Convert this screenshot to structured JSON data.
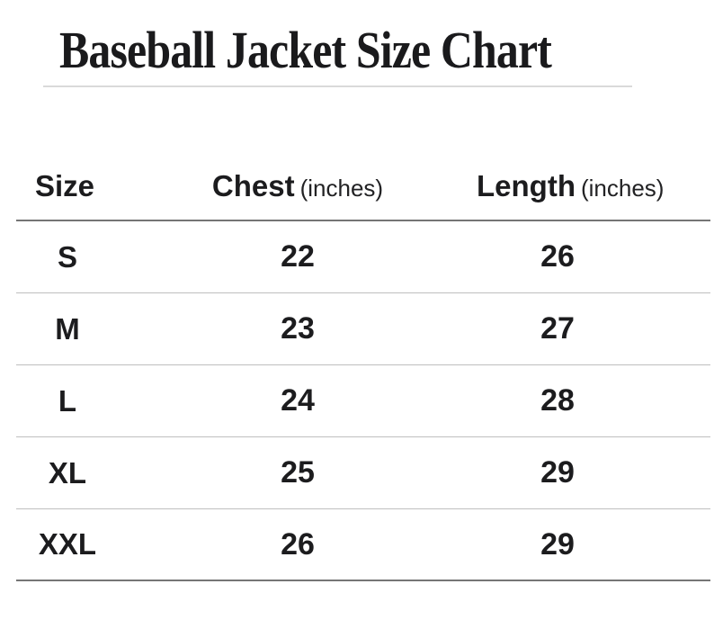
{
  "page": {
    "title": "Baseball Jacket Size Chart"
  },
  "table": {
    "headers": [
      {
        "label": "Size",
        "unit": ""
      },
      {
        "label": "Chest",
        "unit": "(inches)"
      },
      {
        "label": "Length",
        "unit": "(inches)"
      }
    ],
    "rows": [
      {
        "size": "S",
        "chest": "22",
        "length": "26"
      },
      {
        "size": "M",
        "chest": "23",
        "length": "27"
      },
      {
        "size": "L",
        "chest": "24",
        "length": "28"
      },
      {
        "size": "XL",
        "chest": "25",
        "length": "29"
      },
      {
        "size": "XXL",
        "chest": "26",
        "length": "29"
      }
    ]
  },
  "colors": {
    "background": "#ffffff",
    "text": "#1c1c1e",
    "heavy_rule": "#757575",
    "light_rule": "#bfbfbf",
    "title_rule": "#dadada"
  },
  "chart_data": {
    "type": "table",
    "title": "Baseball Jacket Size Chart",
    "columns": [
      "Size",
      "Chest (inches)",
      "Length (inches)"
    ],
    "rows": [
      [
        "S",
        22,
        26
      ],
      [
        "M",
        23,
        27
      ],
      [
        "L",
        24,
        28
      ],
      [
        "XL",
        25,
        29
      ],
      [
        "XXL",
        26,
        29
      ]
    ]
  }
}
